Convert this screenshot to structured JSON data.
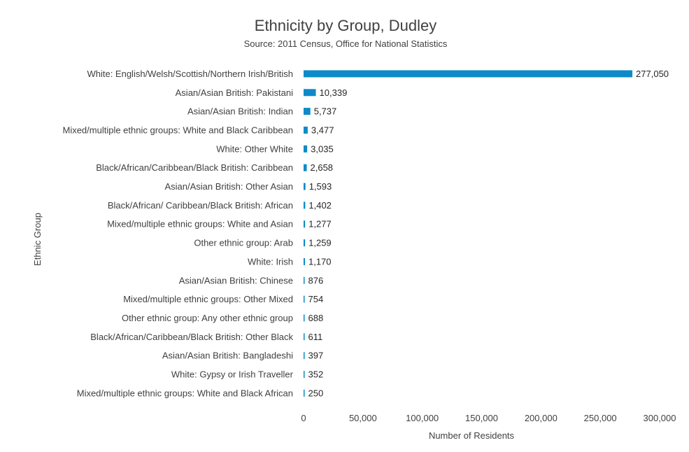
{
  "chart_data": {
    "type": "bar",
    "orientation": "horizontal",
    "title": "Ethnicity by Group, Dudley",
    "subtitle": "Source: 2011 Census, Office for National Statistics",
    "xlabel": "Number of Residents",
    "ylabel": "Ethnic Group",
    "xlim": [
      0,
      300000
    ],
    "x_ticks": [
      "0",
      "50,000",
      "100,000",
      "150,000",
      "200,000",
      "250,000",
      "300,000"
    ],
    "grid": false,
    "bar_color": "#0e8ac8",
    "categories": [
      "White: English/Welsh/Scottish/Northern Irish/British",
      "Asian/Asian British: Pakistani",
      "Asian/Asian British: Indian",
      "Mixed/multiple ethnic groups: White and Black Caribbean",
      "White: Other White",
      "Black/African/Caribbean/Black British: Caribbean",
      "Asian/Asian British: Other Asian",
      "Black/African/ Caribbean/Black British: African",
      "Mixed/multiple ethnic groups: White and Asian",
      "Other ethnic group: Arab",
      "White: Irish",
      "Asian/Asian British: Chinese",
      "Mixed/multiple ethnic groups: Other Mixed",
      "Other ethnic group: Any other ethnic group",
      "Black/African/Caribbean/Black British: Other Black",
      "Asian/Asian British: Bangladeshi",
      "White: Gypsy or Irish Traveller",
      "Mixed/multiple ethnic groups: White and Black African"
    ],
    "values": [
      277050,
      10339,
      5737,
      3477,
      3035,
      2658,
      1593,
      1402,
      1277,
      1259,
      1170,
      876,
      754,
      688,
      611,
      397,
      352,
      250
    ],
    "data_labels": [
      "277,050",
      "10,339",
      "5,737",
      "3,477",
      "3,035",
      "2,658",
      "1,593",
      "1,402",
      "1,277",
      "1,259",
      "1,170",
      "876",
      "754",
      "688",
      "611",
      "397",
      "352",
      "250"
    ]
  }
}
